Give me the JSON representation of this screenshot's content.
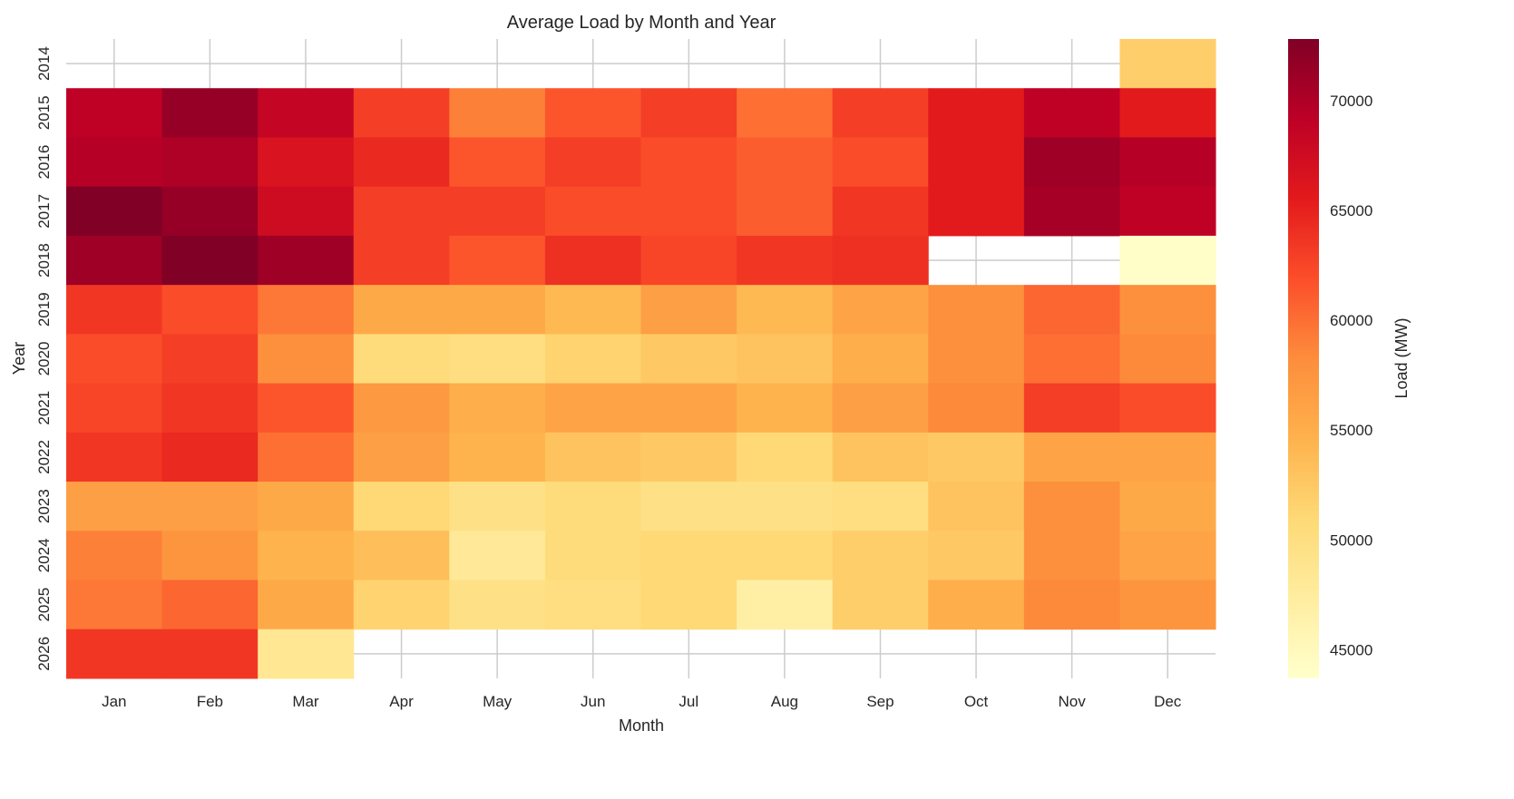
{
  "chart_data": {
    "type": "heatmap",
    "title": "Average Load by Month and Year",
    "xlabel": "Month",
    "ylabel": "Year",
    "colorbar_label": "Load (MW)",
    "colormap": "YlOrRd",
    "colormap_stops": [
      "#ffffcc",
      "#ffeda0",
      "#fed976",
      "#feb24c",
      "#fd8d3c",
      "#fc4e2a",
      "#e31a1c",
      "#bd0026",
      "#800026"
    ],
    "vmin": 43700,
    "vmax": 72800,
    "colorbar_ticks": [
      45000,
      50000,
      55000,
      60000,
      65000,
      70000
    ],
    "grid": true,
    "x_categories": [
      "Jan",
      "Feb",
      "Mar",
      "Apr",
      "May",
      "Jun",
      "Jul",
      "Aug",
      "Sep",
      "Oct",
      "Nov",
      "Dec"
    ],
    "y_categories": [
      "2014",
      "2015",
      "2016",
      "2017",
      "2018",
      "2019",
      "2020",
      "2021",
      "2022",
      "2023",
      "2024",
      "2025",
      "2026"
    ],
    "values": [
      [
        null,
        null,
        null,
        null,
        null,
        null,
        null,
        null,
        null,
        null,
        null,
        52000
      ],
      [
        69000,
        71500,
        68500,
        63000,
        59000,
        61500,
        63000,
        60000,
        63000,
        65500,
        69000,
        65500
      ],
      [
        69500,
        70000,
        66500,
        64500,
        61500,
        63000,
        62000,
        61000,
        62000,
        65500,
        71000,
        69500
      ],
      [
        72800,
        71500,
        67500,
        63000,
        63000,
        62000,
        62000,
        61000,
        63500,
        65500,
        70500,
        69000
      ],
      [
        71000,
        72800,
        71000,
        63000,
        61500,
        64000,
        62500,
        63500,
        64000,
        null,
        null,
        44000
      ],
      [
        63500,
        62000,
        59500,
        55500,
        55500,
        54000,
        56500,
        54000,
        56000,
        58000,
        60500,
        58000
      ],
      [
        62000,
        63000,
        58000,
        50500,
        50000,
        51500,
        52500,
        53000,
        55000,
        58000,
        60000,
        58500
      ],
      [
        62500,
        63500,
        61500,
        57000,
        55000,
        56000,
        56000,
        54500,
        56500,
        58500,
        63000,
        62000
      ],
      [
        63500,
        64500,
        60000,
        56500,
        54500,
        53000,
        52500,
        51000,
        53000,
        52500,
        56000,
        56000
      ],
      [
        56500,
        56500,
        55500,
        51000,
        49500,
        50500,
        49500,
        49500,
        50000,
        53000,
        58000,
        55500
      ],
      [
        59000,
        57500,
        54500,
        53500,
        48000,
        50500,
        51000,
        51000,
        52000,
        52500,
        58000,
        56000
      ],
      [
        59500,
        60500,
        55500,
        51500,
        49500,
        50000,
        51000,
        47000,
        52000,
        55000,
        58500,
        57500
      ],
      [
        63500,
        63500,
        48500,
        null,
        null,
        null,
        null,
        null,
        null,
        null,
        null,
        null
      ]
    ]
  }
}
